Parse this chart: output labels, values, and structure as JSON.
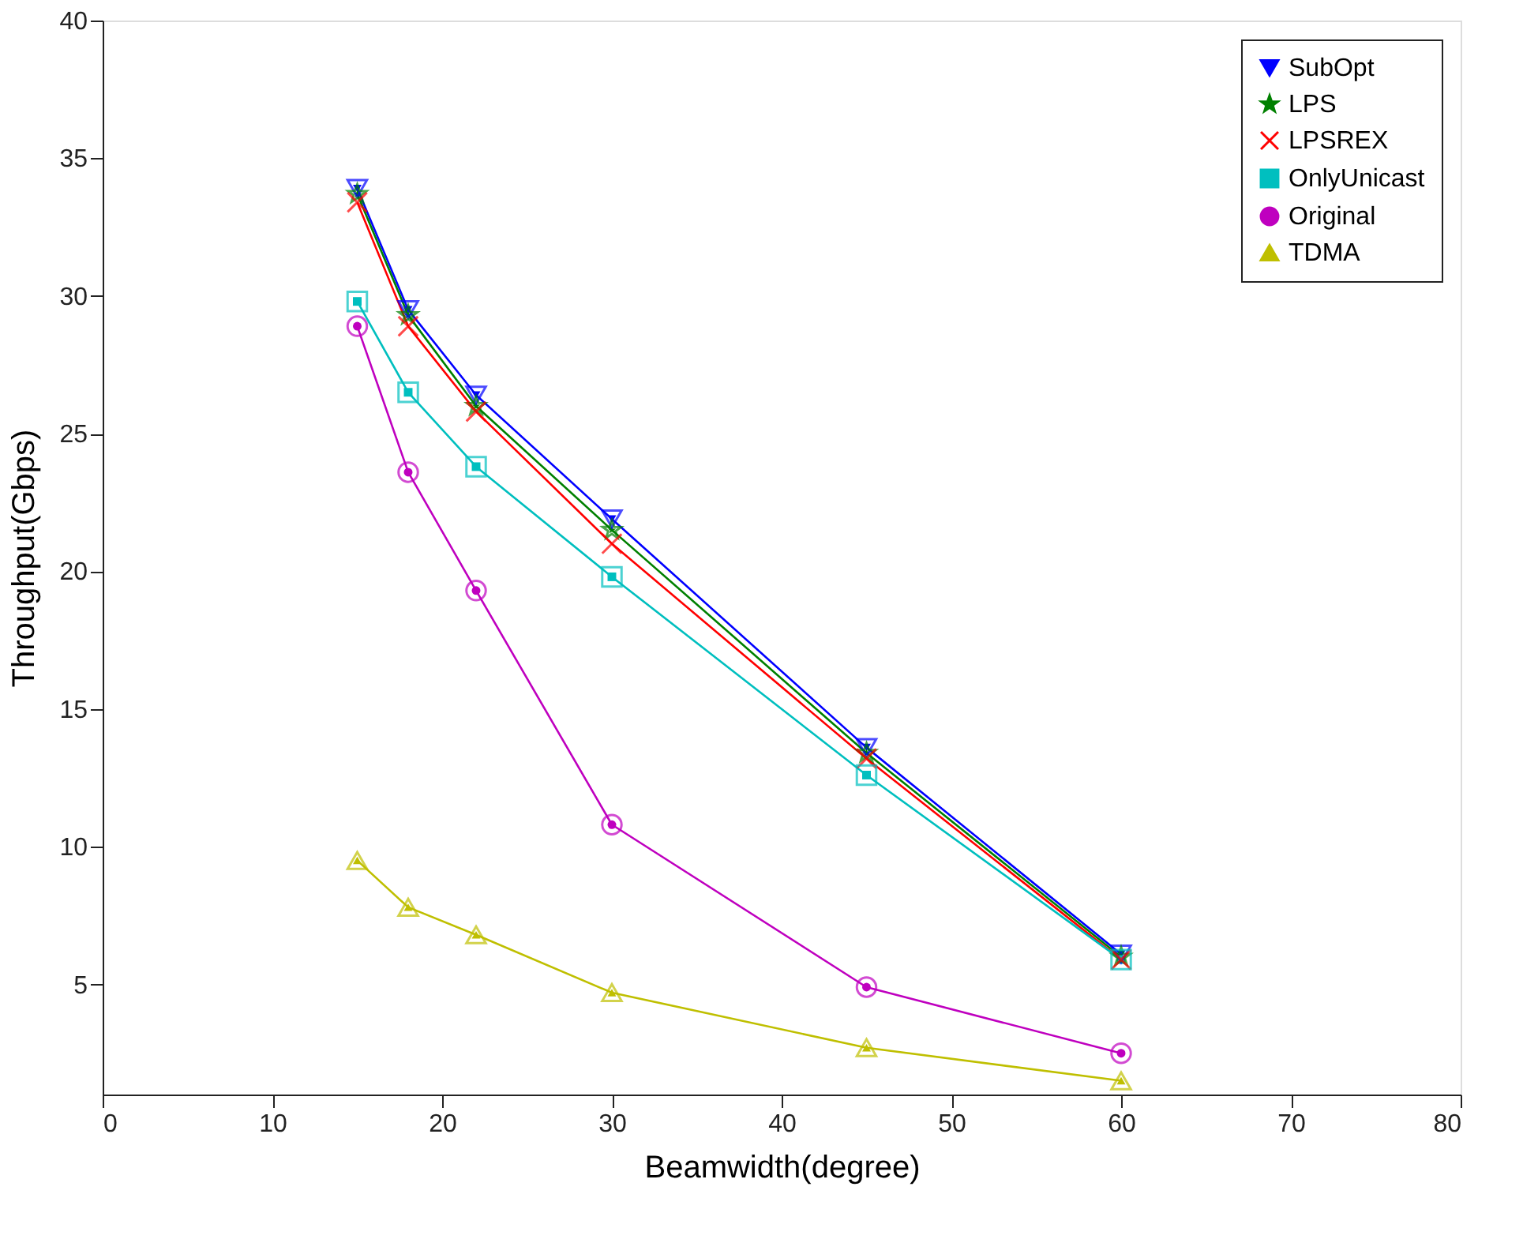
{
  "chart_data": {
    "type": "line",
    "xlabel": "Beamwidth(degree)",
    "ylabel": "Throughput(Gbps)",
    "x": [
      15,
      18,
      22,
      30,
      45,
      60
    ],
    "xlim": [
      0,
      80
    ],
    "xticks": [
      0,
      10,
      20,
      30,
      40,
      50,
      60,
      70,
      80
    ],
    "ylim": [
      1,
      40
    ],
    "yticks": [
      5,
      10,
      15,
      20,
      25,
      30,
      35,
      40
    ],
    "grid": false,
    "legend": "top right",
    "series": [
      {
        "name": "SubOpt",
        "color": "#0000ff",
        "marker": "triangle-down",
        "values": [
          33.9,
          29.5,
          26.4,
          21.9,
          13.6,
          6.1
        ]
      },
      {
        "name": "LPS",
        "color": "#008000",
        "marker": "star",
        "values": [
          33.7,
          29.3,
          26.0,
          21.5,
          13.4,
          6.0
        ]
      },
      {
        "name": "LPSREX",
        "color": "#ff0000",
        "marker": "cross",
        "values": [
          33.4,
          28.9,
          25.8,
          21.0,
          13.2,
          5.9
        ]
      },
      {
        "name": "OnlyUnicast",
        "color": "#00bfbf",
        "marker": "square",
        "values": [
          29.8,
          26.5,
          23.8,
          19.8,
          12.6,
          5.9
        ]
      },
      {
        "name": "Original",
        "color": "#bf00bf",
        "marker": "circle",
        "values": [
          28.9,
          23.6,
          19.3,
          10.8,
          4.9,
          2.5
        ]
      },
      {
        "name": "TDMA",
        "color": "#bfbf00",
        "marker": "triangle",
        "values": [
          9.5,
          7.8,
          6.8,
          4.7,
          2.7,
          1.5
        ]
      }
    ]
  }
}
